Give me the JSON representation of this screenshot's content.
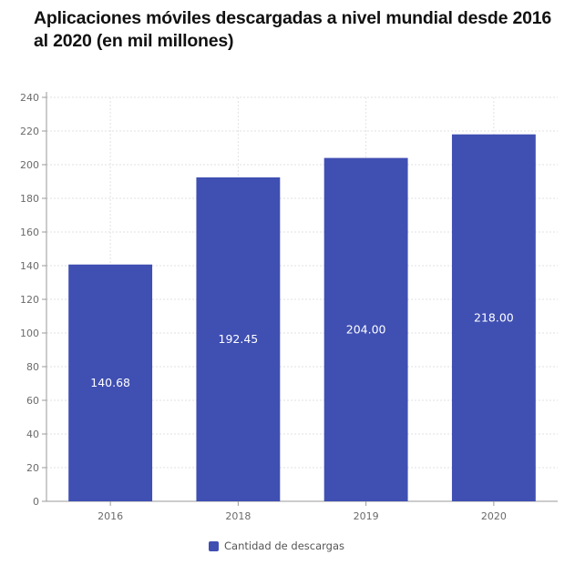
{
  "chart_data": {
    "type": "bar",
    "title": "Aplicaciones móviles descargadas a nivel mundial desde 2016 al 2020 (en mil millones)",
    "categories": [
      "2016",
      "2018",
      "2019",
      "2020"
    ],
    "series": [
      {
        "name": "Cantidad de descargas",
        "values": [
          140.68,
          192.45,
          204.0,
          218.0
        ],
        "value_labels": [
          "140.68",
          "192.45",
          "204.00",
          "218.00"
        ],
        "color": "#3f4fb2"
      }
    ],
    "ylim": [
      0,
      240
    ],
    "yticks": [
      0,
      20,
      40,
      60,
      80,
      100,
      120,
      140,
      160,
      180,
      200,
      220,
      240
    ],
    "grid": true,
    "legend_position": "bottom"
  }
}
